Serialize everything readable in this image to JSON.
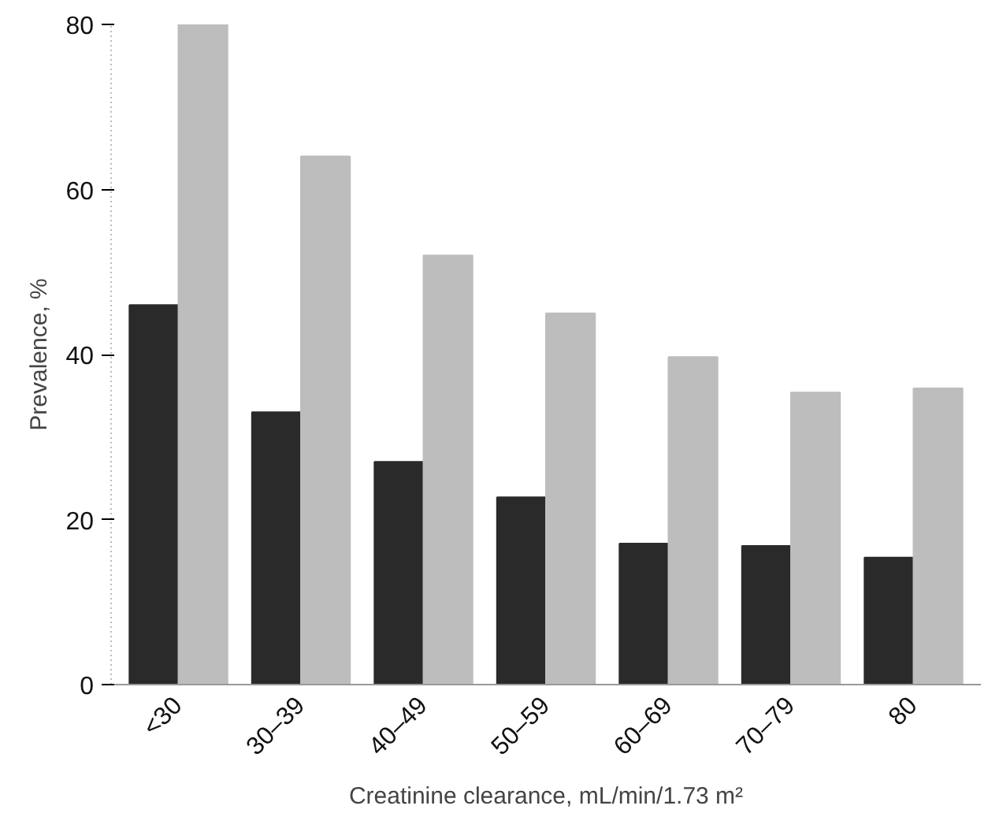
{
  "chart_data": {
    "type": "bar",
    "xlabel": "Creatinine clearance, mL/min/1.73 m²",
    "ylabel": "Prevalence, %",
    "categories": [
      "<30",
      "30–39",
      "40–49",
      "50–59",
      "60–69",
      "70–79",
      "80"
    ],
    "series": [
      {
        "color": "#2a2a2a",
        "values": [
          46,
          33,
          27,
          22.7,
          17.1,
          16.8,
          15.4
        ]
      },
      {
        "color": "#bdbdbd",
        "values": [
          80,
          64,
          52,
          45,
          39.7,
          35.4,
          35.9
        ]
      }
    ],
    "ylim": [
      0,
      80
    ],
    "yticks": [
      0,
      20,
      40,
      60,
      80
    ],
    "grid": false
  }
}
